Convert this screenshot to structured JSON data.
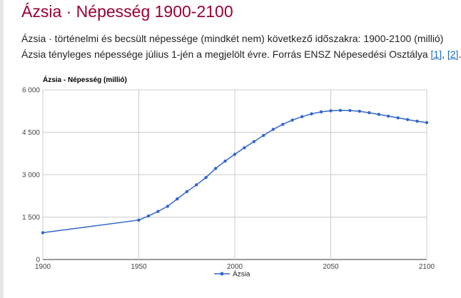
{
  "page": {
    "title": "Ázsia · Népesség 1900-2100",
    "description_line1": "Ázsia · történelmi és becsült népessége (mindkét nem) következő időszakra: 1900-2100 (millió)",
    "description_line2_prefix": "Ázsia tényleges népessége július 1-jén a megjelölt évre. Forrás ENSZ Népesedési Osztálya",
    "ref1": "[1]",
    "ref_sep": ", ",
    "ref2": "[2]",
    "ref_end": "."
  },
  "colors": {
    "title": "#990033",
    "series": "#3366cc",
    "link": "#1a6bc0"
  },
  "chart_data": {
    "type": "line",
    "title": "Ázsia - Népesség (millió)",
    "xlabel": "",
    "ylabel": "",
    "xlim": [
      1900,
      2100
    ],
    "ylim": [
      0,
      6000
    ],
    "x_ticks": [
      1900,
      1950,
      2000,
      2050,
      2100
    ],
    "y_ticks": [
      0,
      1500,
      3000,
      4500,
      6000
    ],
    "y_tick_labels": [
      "0",
      "1 500",
      "3 000",
      "4 500",
      "6 000"
    ],
    "grid": true,
    "legend_position": "bottom",
    "series": [
      {
        "name": "Ázsia",
        "color": "#3366cc",
        "x": [
          1900,
          1950,
          1955,
          1960,
          1965,
          1970,
          1975,
          1980,
          1985,
          1990,
          1995,
          2000,
          2005,
          2010,
          2015,
          2020,
          2025,
          2030,
          2035,
          2040,
          2045,
          2050,
          2055,
          2060,
          2065,
          2070,
          2075,
          2080,
          2085,
          2090,
          2095,
          2100
        ],
        "y": [
          947,
          1395,
          1540,
          1700,
          1880,
          2140,
          2400,
          2640,
          2900,
          3220,
          3480,
          3720,
          3950,
          4170,
          4390,
          4600,
          4780,
          4930,
          5050,
          5150,
          5220,
          5260,
          5275,
          5270,
          5240,
          5190,
          5130,
          5070,
          5010,
          4950,
          4890,
          4840
        ]
      }
    ]
  }
}
